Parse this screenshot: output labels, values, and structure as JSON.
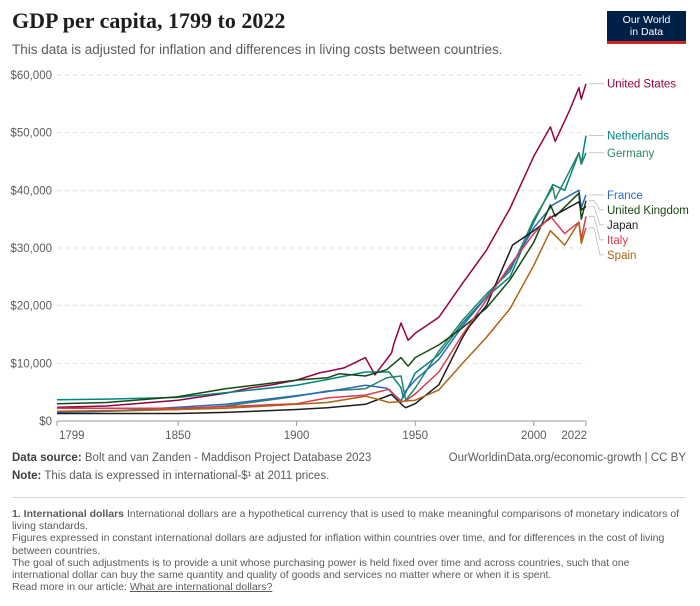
{
  "header": {
    "title": "GDP per capita, 1799 to 2022",
    "subtitle": "This data is adjusted for inflation and differences in living costs between countries.",
    "logo_line1": "Our World",
    "logo_line2": "in Data"
  },
  "footer": {
    "source_label": "Data source:",
    "source_text": "Bolt and van Zanden - Maddison Project Database 2023",
    "url": "OurWorldinData.org/economic-growth | CC BY",
    "note_label": "Note:",
    "note_text": "This data is expressed in international-$¹ at 2011 prices.",
    "footnote_heading": "1. International dollars",
    "footnote_p1": "International dollars are a hypothetical currency that is used to make meaningful comparisons of monetary indicators of living standards.",
    "footnote_p2": "Figures expressed in constant international dollars are adjusted for inflation within countries over time, and for differences in the cost of living between countries.",
    "footnote_p3": "The goal of such adjustments is to provide a unit whose purchasing power is held fixed over time and across countries, such that one international dollar can buy the same quantity and quality of goods and services no matter where or when it is spent.",
    "read_more_prefix": "Read more in our article:",
    "read_more_link": "What are international dollars?"
  },
  "chart_data": {
    "type": "line",
    "title": "GDP per capita, 1799 to 2022",
    "xlim": [
      1799,
      2022
    ],
    "ylim": [
      0,
      60000
    ],
    "y_ticks": [
      0,
      10000,
      20000,
      30000,
      40000,
      50000,
      60000
    ],
    "y_tick_labels": [
      "$0",
      "$10,000",
      "$20,000",
      "$30,000",
      "$40,000",
      "$50,000",
      "$60,000"
    ],
    "x_ticks": [
      1799,
      1850,
      1900,
      1950,
      2000,
      2022
    ],
    "x_tick_labels": [
      "1799",
      "1850",
      "1900",
      "1950",
      "2000",
      "2022"
    ],
    "grid": "horizontal dashed",
    "legend": "right, inline labels",
    "series": [
      {
        "name": "United States",
        "color": "#970046",
        "x": [
          1799,
          1820,
          1850,
          1870,
          1880,
          1890,
          1900,
          1910,
          1913,
          1920,
          1929,
          1933,
          1940,
          1941,
          1944,
          1947,
          1950,
          1960,
          1970,
          1980,
          1990,
          2000,
          2007,
          2009,
          2015,
          2019,
          2020,
          2022
        ],
        "y": [
          2400,
          2600,
          3600,
          4800,
          5700,
          6300,
          7100,
          8400,
          8600,
          9200,
          11000,
          8000,
          11800,
          13400,
          17000,
          14000,
          15200,
          18000,
          23900,
          29600,
          36900,
          45900,
          51000,
          48500,
          53800,
          57800,
          55800,
          58500
        ]
      },
      {
        "name": "Netherlands",
        "color": "#00847e",
        "x": [
          1799,
          1820,
          1850,
          1870,
          1900,
          1913,
          1929,
          1939,
          1944,
          1945,
          1950,
          1960,
          1970,
          1980,
          1990,
          2000,
          2008,
          2013,
          2019,
          2020,
          2022
        ],
        "y": [
          3700,
          3800,
          4100,
          4900,
          6200,
          7200,
          8500,
          8500,
          5800,
          4100,
          8300,
          11500,
          17000,
          21500,
          25000,
          34500,
          41000,
          40000,
          46500,
          44700,
          49500
        ]
      },
      {
        "name": "Germany",
        "color": "#2c8465",
        "x": [
          1799,
          1820,
          1850,
          1870,
          1900,
          1913,
          1929,
          1938,
          1944,
          1946,
          1950,
          1960,
          1970,
          1980,
          1990,
          2000,
          2008,
          2009,
          2019,
          2020,
          2022
        ],
        "y": [
          1600,
          1700,
          2000,
          2600,
          4300,
          5200,
          5600,
          7500,
          7800,
          3600,
          5700,
          12100,
          17500,
          22000,
          26000,
          35000,
          40500,
          38500,
          46500,
          44500,
          46500
        ]
      },
      {
        "name": "France",
        "color": "#286bbb",
        "x": [
          1799,
          1820,
          1850,
          1870,
          1900,
          1913,
          1929,
          1938,
          1944,
          1946,
          1950,
          1960,
          1970,
          1980,
          1990,
          2000,
          2008,
          2019,
          2020,
          2022
        ],
        "y": [
          1500,
          1700,
          2400,
          2900,
          4400,
          5100,
          6200,
          5700,
          3500,
          5200,
          7100,
          10700,
          16500,
          21500,
          26500,
          33500,
          37500,
          40000,
          37000,
          39200
        ]
      },
      {
        "name": "United Kingdom",
        "color": "#18470f",
        "x": [
          1799,
          1820,
          1850,
          1870,
          1900,
          1913,
          1918,
          1929,
          1938,
          1944,
          1947,
          1950,
          1960,
          1970,
          1980,
          1990,
          2000,
          2007,
          2009,
          2019,
          2020,
          2022
        ],
        "y": [
          3000,
          3200,
          4200,
          5600,
          7100,
          7500,
          8200,
          7800,
          8900,
          11000,
          9500,
          11000,
          13200,
          16200,
          19600,
          24500,
          31000,
          37500,
          35500,
          39500,
          35000,
          38200
        ]
      },
      {
        "name": "Japan",
        "color": "#1d1d1d",
        "x": [
          1799,
          1850,
          1870,
          1900,
          1913,
          1929,
          1940,
          1945,
          1946,
          1950,
          1960,
          1970,
          1973,
          1980,
          1990,
          1991,
          2000,
          2008,
          2019,
          2020,
          2022
        ],
        "y": [
          1300,
          1300,
          1500,
          2000,
          2300,
          2900,
          4600,
          2600,
          2300,
          3000,
          6300,
          14500,
          16500,
          20000,
          29500,
          30500,
          33000,
          35500,
          38000,
          36600,
          37200
        ]
      },
      {
        "name": "Italy",
        "color": "#d73c50",
        "x": [
          1799,
          1850,
          1870,
          1900,
          1913,
          1929,
          1939,
          1944,
          1946,
          1950,
          1960,
          1970,
          1980,
          1990,
          2000,
          2007,
          2013,
          2019,
          2020,
          2022
        ],
        "y": [
          2200,
          2200,
          2500,
          3000,
          4000,
          4500,
          5500,
          3300,
          3500,
          4700,
          8500,
          15000,
          21000,
          27000,
          32500,
          35500,
          32500,
          34500,
          31500,
          35500
        ]
      },
      {
        "name": "Spain",
        "color": "#b16214",
        "x": [
          1799,
          1850,
          1870,
          1900,
          1913,
          1929,
          1935,
          1939,
          1950,
          1960,
          1970,
          1980,
          1990,
          2000,
          2007,
          2013,
          2019,
          2020,
          2022
        ],
        "y": [
          1700,
          2000,
          2200,
          2900,
          3200,
          4300,
          3700,
          3200,
          3600,
          5400,
          10000,
          14500,
          19500,
          27000,
          33000,
          30500,
          34500,
          30800,
          33500
        ]
      }
    ],
    "label_order": [
      "United States",
      "Netherlands",
      "Germany",
      "France",
      "United Kingdom",
      "Japan",
      "Italy",
      "Spain"
    ]
  }
}
